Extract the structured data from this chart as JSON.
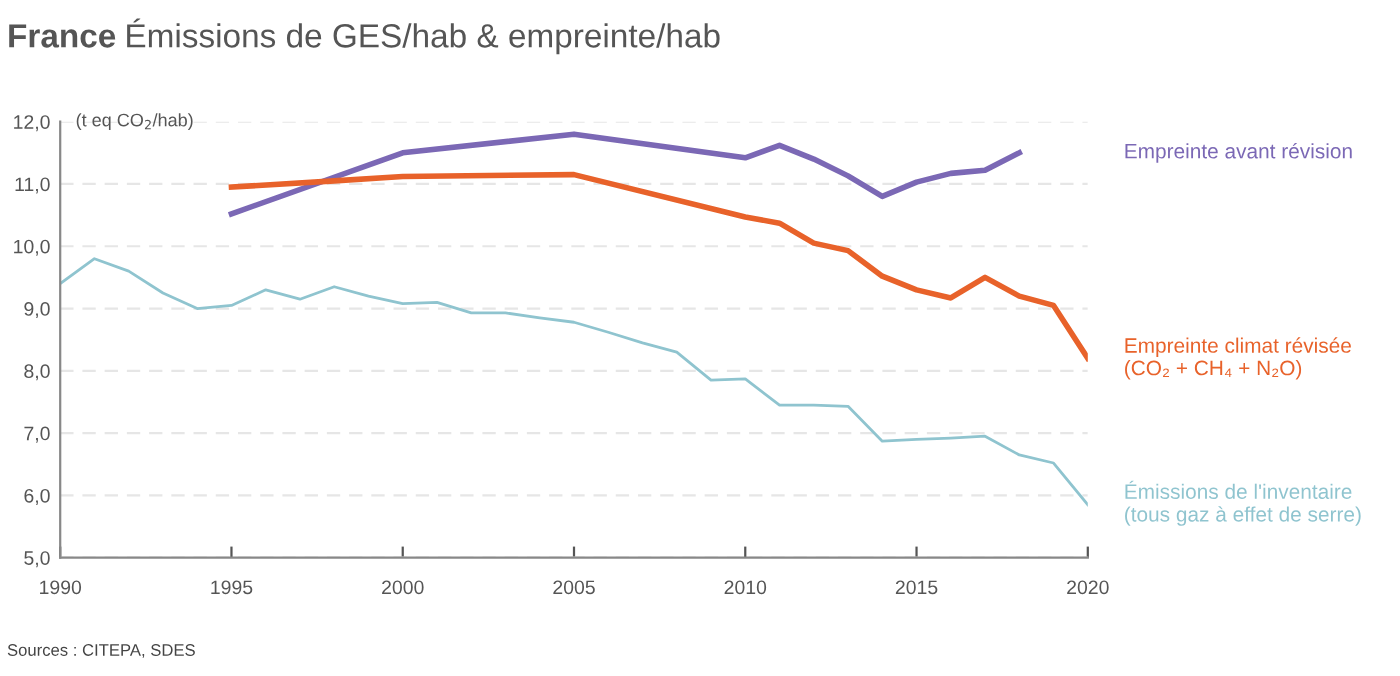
{
  "chart_data": {
    "type": "line",
    "title": "France",
    "subtitle": "Émissions de GES/hab & empreinte/hab",
    "ylabel": "(t eq CO$_{2}$/hab)",
    "series": [
      {
        "name": "Empreinte avant révision",
        "color": "#7b68b5",
        "x": [
          1995,
          2000,
          2005,
          2010,
          2011,
          2012,
          2013,
          2014,
          2015,
          2016,
          2017,
          2018
        ],
        "values": [
          10.52,
          11.5,
          11.8,
          11.42,
          11.62,
          11.4,
          11.13,
          10.8,
          11.03,
          11.17,
          11.22,
          11.5
        ]
      },
      {
        "name": "Empreinte climat révisée\n(CO₂ + CH₄ + N₂O)",
        "color": "#e8622a",
        "x": [
          1995,
          1998,
          2000,
          2005,
          2010,
          2011,
          2012,
          2013,
          2014,
          2015,
          2016,
          2017,
          2018,
          2019,
          2020
        ],
        "values": [
          10.95,
          11.05,
          11.12,
          11.15,
          10.47,
          10.37,
          10.05,
          9.93,
          9.52,
          9.3,
          9.17,
          9.5,
          9.2,
          9.05,
          8.2
        ]
      },
      {
        "name": "Émissions de l'inventaire\n(tous gaz à effet de serre)",
        "color": "#8fc4cf",
        "x": [
          1990,
          1991,
          1992,
          1993,
          1994,
          1995,
          1996,
          1997,
          1998,
          1999,
          2000,
          2001,
          2002,
          2003,
          2004,
          2005,
          2006,
          2007,
          2008,
          2009,
          2010,
          2011,
          2012,
          2013,
          2014,
          2015,
          2016,
          2017,
          2018,
          2019,
          2020
        ],
        "values": [
          9.4,
          9.8,
          9.6,
          9.25,
          9.0,
          9.05,
          9.3,
          9.15,
          9.35,
          9.2,
          9.08,
          9.1,
          8.93,
          8.93,
          8.85,
          8.78,
          8.62,
          8.45,
          8.3,
          7.85,
          7.87,
          7.45,
          7.45,
          7.43,
          6.87,
          6.9,
          6.92,
          6.95,
          6.65,
          6.52,
          5.85
        ]
      }
    ],
    "xlim": [
      1990,
      2020
    ],
    "xticks": [
      1990,
      1995,
      2000,
      2005,
      2010,
      2015,
      2020
    ],
    "ylim": [
      5,
      12
    ],
    "yticks": [
      {
        "value": 5,
        "label": "5,0"
      },
      {
        "value": 6,
        "label": "6,0"
      },
      {
        "value": 7,
        "label": "7,0"
      },
      {
        "value": 8,
        "label": "8,0"
      },
      {
        "value": 9,
        "label": "9,0"
      },
      {
        "value": 10,
        "label": "10,0"
      },
      {
        "value": 11,
        "label": "11,0"
      },
      {
        "value": 12,
        "label": "12,0"
      }
    ],
    "grid": "y",
    "legend": false,
    "marker": "none",
    "line_style": "solid",
    "annotations": [
      "Sources : CITEPA, SDES"
    ]
  }
}
